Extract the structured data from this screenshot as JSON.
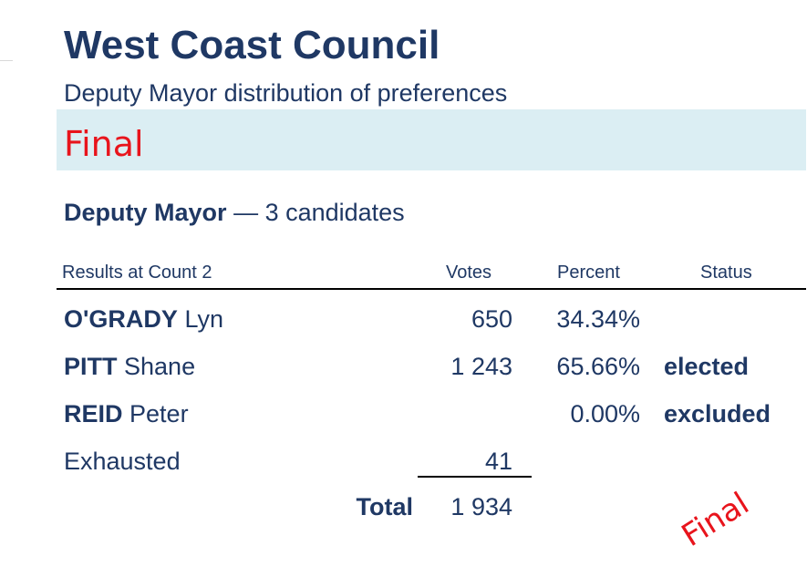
{
  "header": {
    "title": "West Coast Council",
    "subtitle": "Deputy Mayor distribution of preferences",
    "status": "Final"
  },
  "contest": {
    "office": "Deputy Mayor",
    "candidates_text": "— 3 candidates"
  },
  "table": {
    "headers": {
      "count": "Results at Count 2",
      "votes": "Votes",
      "percent": "Percent",
      "status": "Status"
    },
    "rows": [
      {
        "surname": "O'GRADY",
        "given": "Lyn",
        "votes": "650",
        "percent": "34.34%",
        "status": ""
      },
      {
        "surname": "PITT",
        "given": "Shane",
        "votes": "1 243",
        "percent": "65.66%",
        "status": "elected"
      },
      {
        "surname": "REID",
        "given": "Peter",
        "votes": "",
        "percent": "0.00%",
        "status": "excluded"
      }
    ],
    "exhausted": {
      "label": "Exhausted",
      "votes": "41"
    },
    "total": {
      "label": "Total",
      "votes": "1 934"
    }
  },
  "stamp": "Final",
  "colors": {
    "text": "#1f3864",
    "accent_red": "#e8141c",
    "band": "#dbeef3"
  }
}
